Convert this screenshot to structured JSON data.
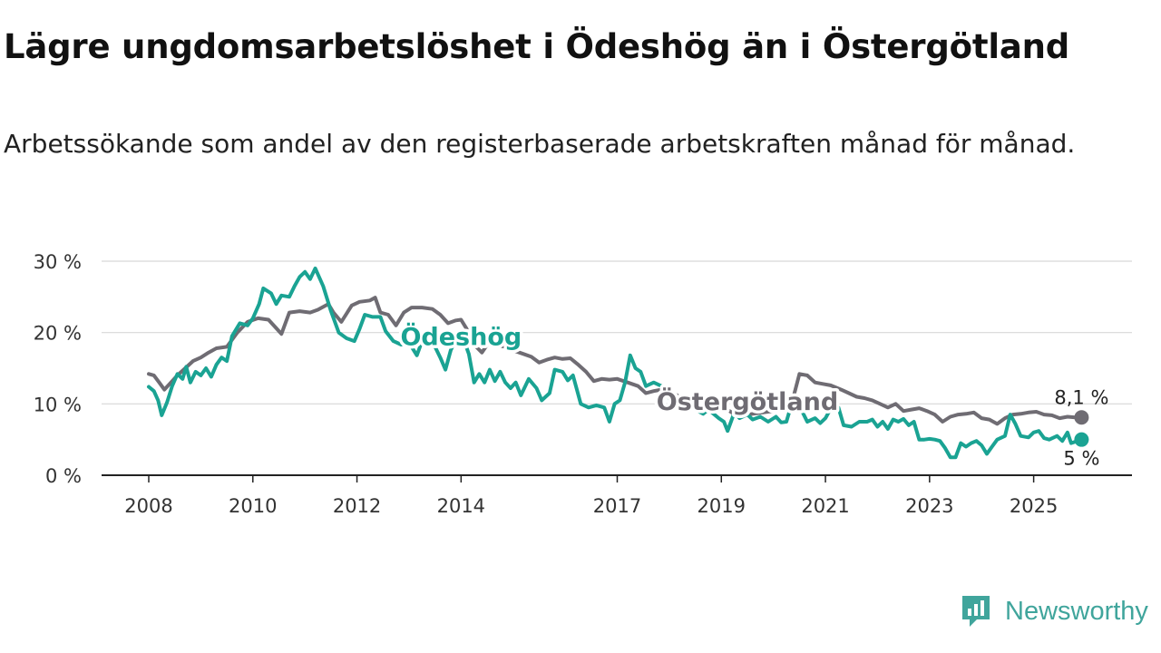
{
  "title": "Lägre ungdomsarbetslöshet i Ödeshög än i Östergötland",
  "subtitle": "Arbetssökande som andel av den registerbaserade arbetskraften månad för månad.",
  "brand": {
    "name": "Newsworthy",
    "color": "#40a59c"
  },
  "chart_data": {
    "type": "line",
    "title": "Lägre ungdomsarbetslöshet i Ödeshög än i Östergötland",
    "xlabel": "",
    "ylabel": "",
    "xlim": [
      2008,
      2026
    ],
    "ylim": [
      0,
      30
    ],
    "yticks": [
      {
        "value": 0,
        "label": "0 %"
      },
      {
        "value": 10,
        "label": "10 %"
      },
      {
        "value": 20,
        "label": "20 %"
      },
      {
        "value": 30,
        "label": "30 %"
      }
    ],
    "xticks": [
      {
        "value": 2008,
        "label": "2008"
      },
      {
        "value": 2010,
        "label": "2010"
      },
      {
        "value": 2012,
        "label": "2012"
      },
      {
        "value": 2014,
        "label": "2014"
      },
      {
        "value": 2017,
        "label": "2017"
      },
      {
        "value": 2019,
        "label": "2019"
      },
      {
        "value": 2021,
        "label": "2021"
      },
      {
        "value": 2023,
        "label": "2023"
      },
      {
        "value": 2025,
        "label": "2025"
      }
    ],
    "grid": true,
    "series": [
      {
        "name": "Östergötland",
        "color": "#6f6c73",
        "end_label": "8,1 %",
        "points": [
          [
            2008.0,
            14.2
          ],
          [
            2008.1,
            14.0
          ],
          [
            2008.2,
            13.0
          ],
          [
            2008.3,
            12.0
          ],
          [
            2008.4,
            12.8
          ],
          [
            2008.55,
            14.0
          ],
          [
            2008.7,
            15.0
          ],
          [
            2008.85,
            16.0
          ],
          [
            2009.0,
            16.5
          ],
          [
            2009.15,
            17.2
          ],
          [
            2009.3,
            17.8
          ],
          [
            2009.5,
            18.0
          ],
          [
            2009.7,
            20.0
          ],
          [
            2009.9,
            21.5
          ],
          [
            2010.1,
            22.0
          ],
          [
            2010.3,
            21.8
          ],
          [
            2010.45,
            20.6
          ],
          [
            2010.55,
            19.8
          ],
          [
            2010.7,
            22.8
          ],
          [
            2010.9,
            23.0
          ],
          [
            2011.1,
            22.8
          ],
          [
            2011.25,
            23.2
          ],
          [
            2011.45,
            24.0
          ],
          [
            2011.55,
            22.8
          ],
          [
            2011.7,
            21.5
          ],
          [
            2011.9,
            23.8
          ],
          [
            2012.05,
            24.3
          ],
          [
            2012.25,
            24.5
          ],
          [
            2012.35,
            24.9
          ],
          [
            2012.45,
            22.8
          ],
          [
            2012.6,
            22.5
          ],
          [
            2012.75,
            21.0
          ],
          [
            2012.9,
            22.8
          ],
          [
            2013.05,
            23.5
          ],
          [
            2013.25,
            23.5
          ],
          [
            2013.45,
            23.3
          ],
          [
            2013.6,
            22.5
          ],
          [
            2013.75,
            21.3
          ],
          [
            2013.9,
            21.7
          ],
          [
            2014.0,
            21.8
          ],
          [
            2014.1,
            20.6
          ],
          [
            2014.25,
            18.3
          ],
          [
            2014.4,
            17.2
          ],
          [
            2014.55,
            18.8
          ],
          [
            2014.7,
            18.2
          ],
          [
            2014.85,
            18.0
          ],
          [
            2015.0,
            17.5
          ],
          [
            2015.2,
            17.0
          ],
          [
            2015.35,
            16.6
          ],
          [
            2015.5,
            15.8
          ],
          [
            2015.65,
            16.2
          ],
          [
            2015.8,
            16.5
          ],
          [
            2015.95,
            16.3
          ],
          [
            2016.1,
            16.4
          ],
          [
            2016.25,
            15.5
          ],
          [
            2016.4,
            14.5
          ],
          [
            2016.55,
            13.2
          ],
          [
            2016.7,
            13.5
          ],
          [
            2016.85,
            13.4
          ],
          [
            2017.0,
            13.5
          ],
          [
            2017.2,
            13.0
          ],
          [
            2017.4,
            12.5
          ],
          [
            2017.55,
            11.5
          ],
          [
            2017.7,
            11.8
          ],
          [
            2017.85,
            12.0
          ],
          [
            2018.0,
            11.6
          ],
          [
            2018.15,
            11.2
          ],
          [
            2018.3,
            10.2
          ],
          [
            2018.45,
            10.0
          ],
          [
            2018.6,
            9.6
          ],
          [
            2018.75,
            9.8
          ],
          [
            2018.9,
            9.2
          ],
          [
            2019.05,
            9.5
          ],
          [
            2019.2,
            8.8
          ],
          [
            2019.4,
            8.3
          ],
          [
            2019.6,
            8.6
          ],
          [
            2019.8,
            8.8
          ],
          [
            2020.0,
            9.0
          ],
          [
            2020.15,
            9.2
          ],
          [
            2020.35,
            10.0
          ],
          [
            2020.5,
            14.2
          ],
          [
            2020.65,
            14.0
          ],
          [
            2020.8,
            13.0
          ],
          [
            2020.95,
            12.8
          ],
          [
            2021.1,
            12.6
          ],
          [
            2021.3,
            12.0
          ],
          [
            2021.45,
            11.5
          ],
          [
            2021.6,
            11.0
          ],
          [
            2021.75,
            10.8
          ],
          [
            2021.9,
            10.5
          ],
          [
            2022.05,
            10.0
          ],
          [
            2022.2,
            9.5
          ],
          [
            2022.35,
            10.0
          ],
          [
            2022.5,
            9.0
          ],
          [
            2022.65,
            9.2
          ],
          [
            2022.8,
            9.4
          ],
          [
            2022.95,
            9.0
          ],
          [
            2023.1,
            8.5
          ],
          [
            2023.25,
            7.5
          ],
          [
            2023.4,
            8.2
          ],
          [
            2023.55,
            8.5
          ],
          [
            2023.7,
            8.6
          ],
          [
            2023.85,
            8.8
          ],
          [
            2024.0,
            8.0
          ],
          [
            2024.15,
            7.8
          ],
          [
            2024.3,
            7.2
          ],
          [
            2024.45,
            8.0
          ],
          [
            2024.6,
            8.5
          ],
          [
            2024.75,
            8.6
          ],
          [
            2024.9,
            8.8
          ],
          [
            2025.05,
            8.9
          ],
          [
            2025.2,
            8.5
          ],
          [
            2025.35,
            8.4
          ],
          [
            2025.5,
            8.0
          ],
          [
            2025.65,
            8.2
          ],
          [
            2025.8,
            8.1
          ],
          [
            2025.92,
            8.1
          ]
        ]
      },
      {
        "name": "Ödeshög",
        "color": "#1aa393",
        "end_label": "5 %",
        "points": [
          [
            2008.0,
            12.4
          ],
          [
            2008.1,
            11.8
          ],
          [
            2008.18,
            10.5
          ],
          [
            2008.25,
            8.4
          ],
          [
            2008.35,
            10.2
          ],
          [
            2008.45,
            12.5
          ],
          [
            2008.55,
            14.2
          ],
          [
            2008.65,
            13.5
          ],
          [
            2008.72,
            15.2
          ],
          [
            2008.8,
            13.0
          ],
          [
            2008.9,
            14.5
          ],
          [
            2009.0,
            14.0
          ],
          [
            2009.1,
            15.0
          ],
          [
            2009.2,
            13.8
          ],
          [
            2009.3,
            15.5
          ],
          [
            2009.4,
            16.5
          ],
          [
            2009.5,
            16.0
          ],
          [
            2009.6,
            19.5
          ],
          [
            2009.75,
            21.3
          ],
          [
            2009.9,
            21.0
          ],
          [
            2010.0,
            22.0
          ],
          [
            2010.12,
            24.0
          ],
          [
            2010.2,
            26.2
          ],
          [
            2010.35,
            25.5
          ],
          [
            2010.45,
            24.0
          ],
          [
            2010.55,
            25.2
          ],
          [
            2010.7,
            25.0
          ],
          [
            2010.8,
            26.5
          ],
          [
            2010.9,
            27.8
          ],
          [
            2011.0,
            28.5
          ],
          [
            2011.1,
            27.5
          ],
          [
            2011.2,
            29.0
          ],
          [
            2011.35,
            26.5
          ],
          [
            2011.5,
            23.0
          ],
          [
            2011.65,
            20.0
          ],
          [
            2011.8,
            19.2
          ],
          [
            2011.95,
            18.8
          ],
          [
            2012.05,
            20.5
          ],
          [
            2012.15,
            22.5
          ],
          [
            2012.3,
            22.2
          ],
          [
            2012.45,
            22.2
          ],
          [
            2012.55,
            20.2
          ],
          [
            2012.7,
            18.8
          ],
          [
            2012.85,
            18.3
          ],
          [
            2012.95,
            18.6
          ],
          [
            2013.05,
            18.0
          ],
          [
            2013.15,
            16.8
          ],
          [
            2013.25,
            18.8
          ],
          [
            2013.4,
            19.8
          ],
          [
            2013.5,
            18.0
          ],
          [
            2013.6,
            16.5
          ],
          [
            2013.7,
            14.8
          ],
          [
            2013.8,
            17.5
          ],
          [
            2013.9,
            19.0
          ],
          [
            2014.05,
            19.0
          ],
          [
            2014.15,
            17.0
          ],
          [
            2014.25,
            13.0
          ],
          [
            2014.35,
            14.2
          ],
          [
            2014.45,
            13.0
          ],
          [
            2014.55,
            14.8
          ],
          [
            2014.65,
            13.2
          ],
          [
            2014.75,
            14.5
          ],
          [
            2014.85,
            13.0
          ],
          [
            2014.95,
            12.2
          ],
          [
            2015.05,
            13.0
          ],
          [
            2015.15,
            11.2
          ],
          [
            2015.3,
            13.5
          ],
          [
            2015.45,
            12.2
          ],
          [
            2015.55,
            10.5
          ],
          [
            2015.7,
            11.5
          ],
          [
            2015.8,
            14.8
          ],
          [
            2015.95,
            14.5
          ],
          [
            2016.05,
            13.3
          ],
          [
            2016.15,
            14.0
          ],
          [
            2016.3,
            10.0
          ],
          [
            2016.45,
            9.5
          ],
          [
            2016.6,
            9.8
          ],
          [
            2016.75,
            9.5
          ],
          [
            2016.85,
            7.5
          ],
          [
            2016.95,
            10.0
          ],
          [
            2017.05,
            10.5
          ],
          [
            2017.15,
            13.0
          ],
          [
            2017.25,
            16.8
          ],
          [
            2017.35,
            15.0
          ],
          [
            2017.45,
            14.5
          ],
          [
            2017.55,
            12.5
          ],
          [
            2017.7,
            13.0
          ],
          [
            2017.85,
            12.5
          ],
          [
            2017.95,
            11.5
          ],
          [
            2018.05,
            10.0
          ],
          [
            2018.15,
            10.5
          ],
          [
            2018.3,
            10.0
          ],
          [
            2018.45,
            9.5
          ],
          [
            2018.55,
            9.0
          ],
          [
            2018.65,
            8.6
          ],
          [
            2018.75,
            9.2
          ],
          [
            2018.85,
            8.6
          ],
          [
            2018.95,
            8.0
          ],
          [
            2019.05,
            7.5
          ],
          [
            2019.12,
            6.2
          ],
          [
            2019.25,
            8.8
          ],
          [
            2019.35,
            8.0
          ],
          [
            2019.5,
            8.5
          ],
          [
            2019.6,
            7.8
          ],
          [
            2019.75,
            8.2
          ],
          [
            2019.9,
            7.5
          ],
          [
            2020.05,
            8.2
          ],
          [
            2020.15,
            7.4
          ],
          [
            2020.25,
            7.5
          ],
          [
            2020.35,
            10.0
          ],
          [
            2020.45,
            9.0
          ],
          [
            2020.55,
            9.0
          ],
          [
            2020.65,
            7.5
          ],
          [
            2020.8,
            8.0
          ],
          [
            2020.9,
            7.3
          ],
          [
            2021.0,
            8.0
          ],
          [
            2021.15,
            10.0
          ],
          [
            2021.25,
            9.5
          ],
          [
            2021.35,
            7.0
          ],
          [
            2021.5,
            6.8
          ],
          [
            2021.65,
            7.5
          ],
          [
            2021.8,
            7.5
          ],
          [
            2021.9,
            7.8
          ],
          [
            2022.0,
            6.8
          ],
          [
            2022.1,
            7.5
          ],
          [
            2022.2,
            6.5
          ],
          [
            2022.3,
            7.8
          ],
          [
            2022.4,
            7.5
          ],
          [
            2022.5,
            7.9
          ],
          [
            2022.6,
            7.0
          ],
          [
            2022.7,
            7.5
          ],
          [
            2022.8,
            5.0
          ],
          [
            2022.9,
            5.0
          ],
          [
            2023.0,
            5.1
          ],
          [
            2023.1,
            5.0
          ],
          [
            2023.2,
            4.8
          ],
          [
            2023.3,
            3.8
          ],
          [
            2023.4,
            2.5
          ],
          [
            2023.5,
            2.5
          ],
          [
            2023.6,
            4.5
          ],
          [
            2023.7,
            4.0
          ],
          [
            2023.8,
            4.5
          ],
          [
            2023.9,
            4.8
          ],
          [
            2024.0,
            4.2
          ],
          [
            2024.1,
            3.0
          ],
          [
            2024.2,
            4.0
          ],
          [
            2024.3,
            5.0
          ],
          [
            2024.45,
            5.5
          ],
          [
            2024.55,
            8.5
          ],
          [
            2024.65,
            7.2
          ],
          [
            2024.75,
            5.5
          ],
          [
            2024.9,
            5.3
          ],
          [
            2025.0,
            6.0
          ],
          [
            2025.1,
            6.2
          ],
          [
            2025.2,
            5.2
          ],
          [
            2025.3,
            5.0
          ],
          [
            2025.45,
            5.5
          ],
          [
            2025.55,
            4.8
          ],
          [
            2025.65,
            6.0
          ],
          [
            2025.72,
            4.5
          ],
          [
            2025.92,
            5.0
          ]
        ]
      }
    ],
    "annotations": [
      {
        "series": "Ödeshög",
        "text": "Ödeshög",
        "at": [
          2014.0,
          19.4
        ]
      },
      {
        "series": "Östergötland",
        "text": "Östergötland",
        "at": [
          2019.5,
          10.3
        ]
      }
    ]
  }
}
